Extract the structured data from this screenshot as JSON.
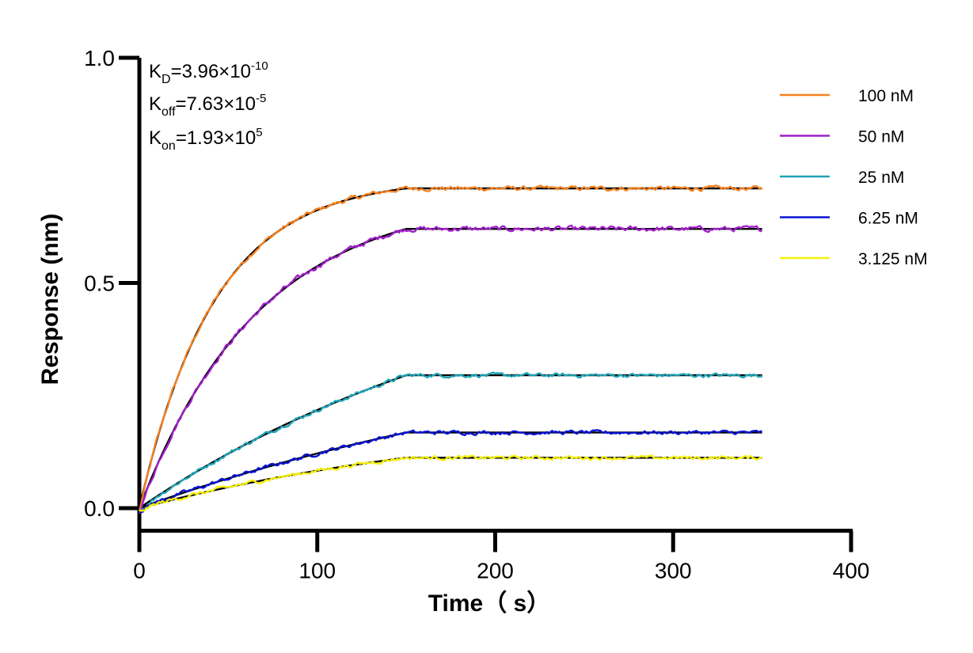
{
  "chart_data": {
    "type": "line",
    "xlabel": "Time（ s）",
    "ylabel": "Response (nm)",
    "xlim": [
      0,
      400
    ],
    "ylim": [
      -0.05,
      1.0
    ],
    "x_ticks": [
      0,
      100,
      200,
      300,
      400
    ],
    "x_tick_labels": [
      "0",
      "100",
      "200",
      "300",
      "400"
    ],
    "y_ticks": [
      0.0,
      0.5,
      1.0
    ],
    "y_tick_labels": [
      "0.0",
      "0.5",
      "1.0"
    ],
    "grid": false,
    "legend_position": "right",
    "association_end": 150,
    "x_end": 350,
    "fit_color": "#000000",
    "kinetics": {
      "kd": {
        "sym": "K",
        "sub": "D",
        "val": "=3.96×10",
        "exp": "-10"
      },
      "koff": {
        "sym": "K",
        "sub": "off",
        "val": "=7.63×10",
        "exp": "-5"
      },
      "kon": {
        "sym": "K",
        "sub": "on",
        "val": "=1.93×10",
        "exp": "5"
      }
    },
    "series": [
      {
        "name": "100 nM",
        "color": "#f58220",
        "plateau": 0.71,
        "rate": 0.0235,
        "noise": 0.004
      },
      {
        "name": "50 nM",
        "color": "#a020c8",
        "plateau": 0.62,
        "rate": 0.0148,
        "noise": 0.0045
      },
      {
        "name": "25 nM",
        "color": "#1fa3b5",
        "plateau": 0.295,
        "rate": 0.0045,
        "noise": 0.0035
      },
      {
        "name": "6.25 nM",
        "color": "#0a14d2",
        "plateau": 0.168,
        "rate": 0.0035,
        "noise": 0.0035
      },
      {
        "name": "3.125 nM",
        "color": "#f5f00a",
        "plateau": 0.112,
        "rate": 0.0048,
        "noise": 0.0035
      }
    ]
  }
}
